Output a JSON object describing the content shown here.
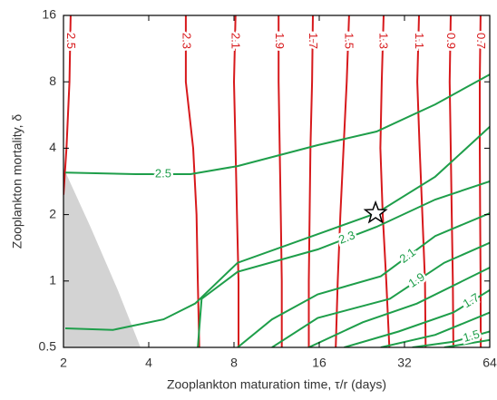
{
  "chart_data": {
    "type": "contour",
    "x_label": "Zooplankton maturation time, τ/r (days)",
    "y_label": "Zooplankton mortality, δ",
    "xscale": "log",
    "yscale": "log",
    "xlim": [
      2,
      64
    ],
    "ylim": [
      0.5,
      16
    ],
    "xticks": [
      2,
      4,
      8,
      16,
      32,
      64
    ],
    "yticks": [
      0.5,
      1,
      2,
      4,
      8,
      16
    ],
    "shaded_region": {
      "color": "#d3d3d3",
      "x": [
        2,
        2.49,
        3.11,
        3.74,
        2
      ],
      "y": [
        3.26,
        1.76,
        0.91,
        0.5,
        0.5
      ]
    },
    "marker": {
      "x": 25.3,
      "y": 2.03
    },
    "series": [
      {
        "level": 2.5,
        "color": "#d7191c",
        "x": [
          2.12,
          2.1,
          2.05,
          2.0
        ],
        "y": [
          16,
          8,
          4,
          2.46
        ]
      },
      {
        "level": 2.3,
        "color": "#d7191c",
        "x": [
          5.41,
          5.41,
          5.74,
          5.9,
          5.96,
          6.03
        ],
        "y": [
          16,
          8,
          4,
          2,
          1,
          0.5
        ]
      },
      {
        "level": 2.1,
        "color": "#d7191c",
        "x": [
          8.1,
          8.0,
          8.1,
          8.2,
          8.3,
          8.3
        ],
        "y": [
          16,
          8,
          4,
          2,
          1,
          0.5
        ]
      },
      {
        "level": 1.9,
        "color": "#d7191c",
        "x": [
          11.5,
          11.5,
          11.6,
          11.7,
          11.8,
          11.8
        ],
        "y": [
          16,
          8,
          4,
          2,
          1,
          0.5
        ]
      },
      {
        "level": 1.7,
        "color": "#d7191c",
        "x": [
          15.2,
          15.1,
          14.9,
          14.8,
          14.7,
          14.7
        ],
        "y": [
          16,
          8,
          4,
          2,
          1,
          0.5
        ]
      },
      {
        "level": 1.5,
        "color": "#d7191c",
        "x": [
          20.4,
          20.0,
          19.5,
          19.0,
          18.6,
          18.3
        ],
        "y": [
          16,
          8,
          4,
          2,
          1,
          0.5
        ]
      },
      {
        "level": 1.3,
        "color": "#d7191c",
        "x": [
          27.0,
          26.6,
          26.3,
          26.8,
          27.6,
          28.3
        ],
        "y": [
          16,
          8,
          4,
          2,
          1,
          0.5
        ]
      },
      {
        "level": 1.1,
        "color": "#d7191c",
        "x": [
          36.0,
          35.5,
          36.2,
          37.0,
          37.8,
          38.0
        ],
        "y": [
          16,
          8,
          4,
          2,
          1,
          0.5
        ]
      },
      {
        "level": 0.9,
        "color": "#d7191c",
        "x": [
          46.6,
          46.2,
          46.6,
          47.0,
          47.4,
          47.6
        ],
        "y": [
          16,
          8,
          4,
          2,
          1,
          0.5
        ]
      },
      {
        "level": 0.7,
        "color": "#d7191c",
        "x": [
          59.4,
          59.0,
          59.0,
          59.2,
          59.4,
          59.5
        ],
        "y": [
          16,
          8,
          4,
          2,
          1,
          0.5
        ]
      },
      {
        "level": 2.5,
        "color": "#1e9e4a",
        "x": [
          2.03,
          3.6,
          5.62,
          8.24,
          15.8,
          25.5,
          41.1,
          64
        ],
        "y": [
          3.1,
          3.05,
          3.05,
          3.32,
          4.13,
          4.76,
          6.32,
          8.64
        ]
      },
      {
        "color": "#1e9e4a",
        "x": [
          2.03,
          2.99,
          4.51,
          5.83,
          8.24,
          15.8,
          25.5,
          41.1,
          64
        ],
        "y": [
          0.61,
          0.6,
          0.67,
          0.79,
          1.21,
          1.63,
          2.03,
          2.97,
          5.0
        ]
      },
      {
        "level": 2.3,
        "color": "#1e9e4a",
        "x": [
          5.96,
          6.15,
          8.24,
          15.8,
          25.5,
          41.1,
          64
        ],
        "y": [
          0.5,
          0.83,
          1.1,
          1.39,
          1.76,
          2.34,
          2.83
        ]
      },
      {
        "level": 2.1,
        "color": "#1e9e4a",
        "x": [
          8.24,
          10.9,
          15.8,
          26.4,
          41.1,
          64
        ],
        "y": [
          0.5,
          0.67,
          0.87,
          1.05,
          1.6,
          2.03
        ]
      },
      {
        "level": 1.9,
        "color": "#1e9e4a",
        "x": [
          10.9,
          15.8,
          28.4,
          44.2,
          64
        ],
        "y": [
          0.5,
          0.68,
          0.83,
          1.21,
          1.49
        ]
      },
      {
        "color": "#1e9e4a",
        "x": [
          14.7,
          22.8,
          35.4,
          64
        ],
        "y": [
          0.5,
          0.65,
          0.79,
          1.15
        ]
      },
      {
        "level": 1.7,
        "color": "#1e9e4a",
        "x": [
          19.6,
          30.5,
          47.6,
          64
        ],
        "y": [
          0.5,
          0.59,
          0.72,
          0.91
        ]
      },
      {
        "color": "#1e9e4a",
        "x": [
          26.4,
          41.1,
          64
        ],
        "y": [
          0.5,
          0.57,
          0.72
        ]
      },
      {
        "level": 1.5,
        "color": "#1e9e4a",
        "x": [
          34.1,
          47.6,
          64
        ],
        "y": [
          0.5,
          0.53,
          0.59
        ]
      },
      {
        "color": "#1e9e4a",
        "x": [
          44.2,
          64
        ],
        "y": [
          0.5,
          0.54
        ]
      }
    ]
  }
}
